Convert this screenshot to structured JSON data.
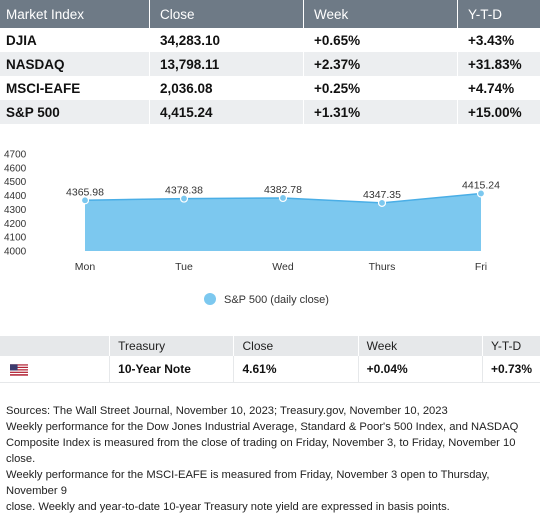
{
  "index_table": {
    "headers": [
      "Market Index",
      "Close",
      "Week",
      "Y-T-D"
    ],
    "rows": [
      [
        "DJIA",
        "34,283.10",
        "+0.65%",
        "+3.43%"
      ],
      [
        "NASDAQ",
        "13,798.11",
        "+2.37%",
        "+31.83%"
      ],
      [
        "MSCI-EAFE",
        "2,036.08",
        "+0.25%",
        "+4.74%"
      ],
      [
        "S&P 500",
        "4,415.24",
        "+1.31%",
        "+15.00%"
      ]
    ]
  },
  "chart_data": {
    "type": "area",
    "categories": [
      "Mon",
      "Tue",
      "Wed",
      "Thurs",
      "Fri"
    ],
    "series": [
      {
        "name": "S&P 500 (daily close)",
        "values": [
          4365.98,
          4378.38,
          4382.78,
          4347.35,
          4415.24
        ]
      }
    ],
    "data_labels": [
      "4365.98",
      "4378.38",
      "4382.78",
      "4347.35",
      "4415.24"
    ],
    "yticks": [
      4000,
      4100,
      4200,
      4300,
      4400,
      4500,
      4600,
      4700
    ],
    "ylim": [
      4000,
      4700
    ],
    "title": "",
    "xlabel": "",
    "ylabel": "",
    "grid": false,
    "legend": "bottom-center",
    "colors": {
      "area": "#7cc8ef",
      "line": "#4aaee6",
      "marker": "#7cc8ef"
    }
  },
  "treasury_table": {
    "headers": [
      "",
      "Treasury",
      "Close",
      "Week",
      "Y-T-D"
    ],
    "row": {
      "flag_icon": "us-flag-icon",
      "cells": [
        "10-Year Note",
        "4.61%",
        "+0.04%",
        "+0.73%"
      ]
    }
  },
  "footnote": {
    "lines": [
      "Sources: The Wall Street Journal, November 10, 2023; Treasury.gov, November 10, 2023",
      "Weekly performance for the Dow Jones Industrial Average, Standard & Poor's 500 Index, and NASDAQ",
      "Composite Index is measured from the close of trading on Friday, November 3, to Friday, November 10 close.",
      "Weekly performance for the MSCI-EAFE is measured from Friday, November 3 open to Thursday, November 9",
      "close. Weekly and year-to-date 10-year Treasury note yield are expressed in basis points."
    ]
  }
}
